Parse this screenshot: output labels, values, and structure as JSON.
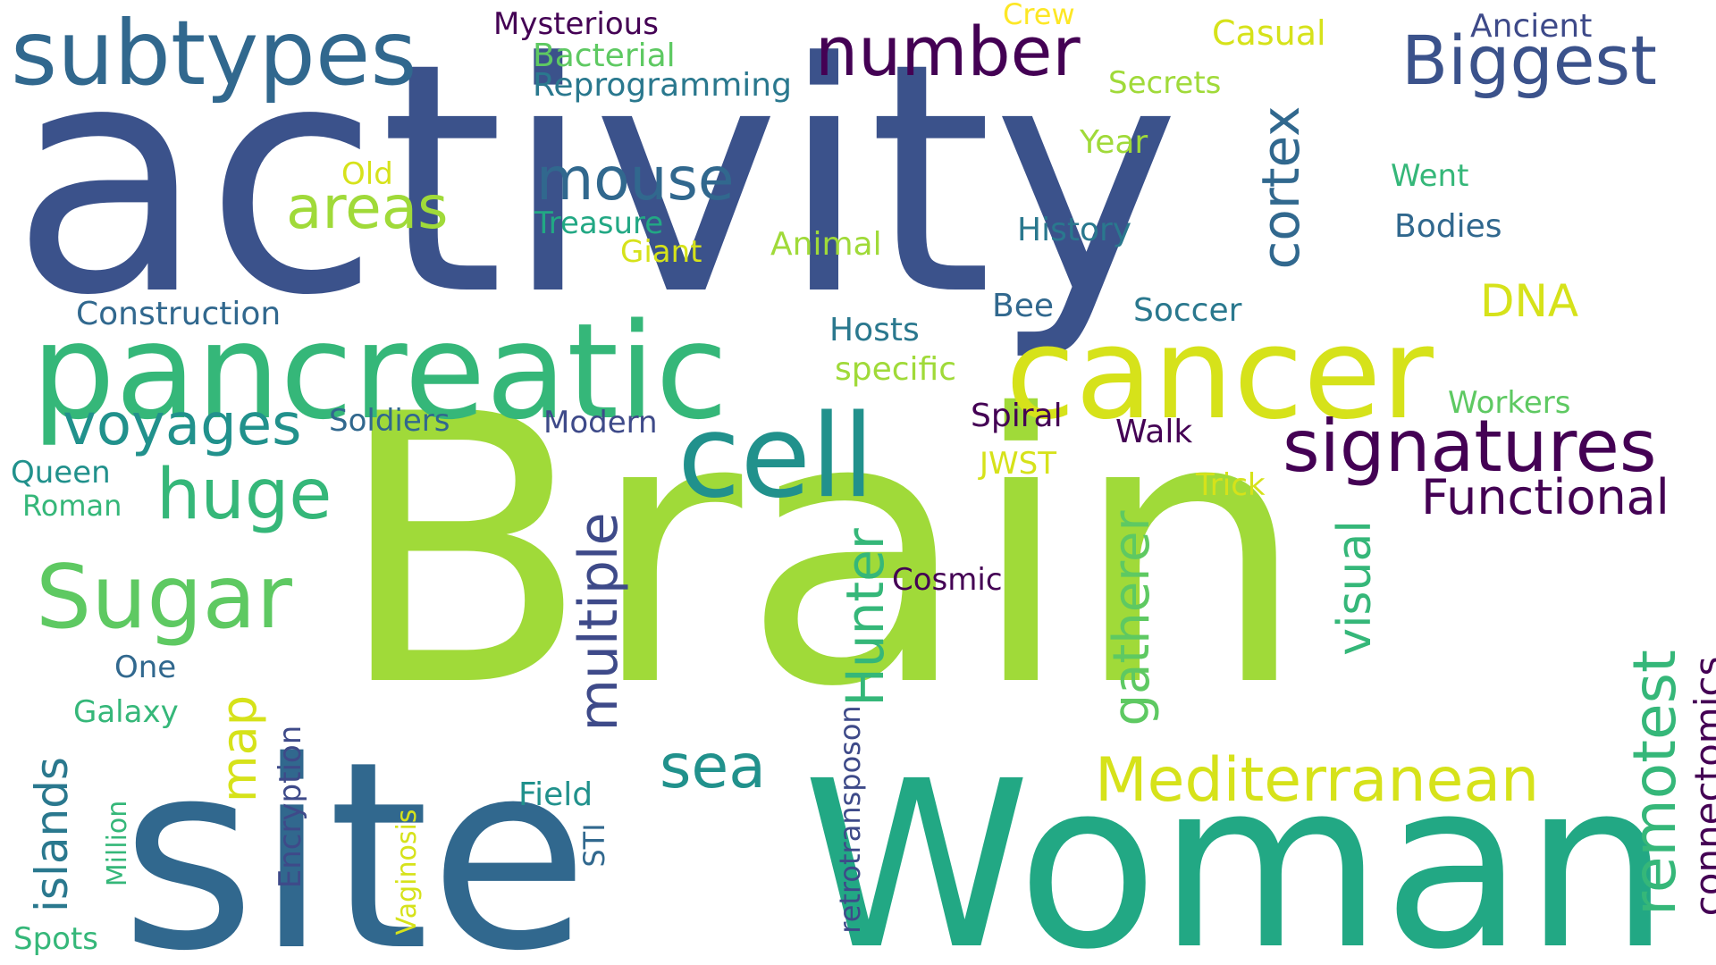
{
  "palette": {
    "background": "#ffffff",
    "colors": [
      "#3b528b",
      "#31688e",
      "#21918c",
      "#35b779",
      "#5ec962",
      "#a0da39",
      "#d6e21a",
      "#440154",
      "#3e4a89",
      "#2a788e",
      "#22a884",
      "#fde725"
    ]
  },
  "words": [
    {
      "id": "activity",
      "text": "activity",
      "color": "#3b528b",
      "vertical": false
    },
    {
      "id": "brain",
      "text": "Brain",
      "color": "#a0da39",
      "vertical": false
    },
    {
      "id": "site",
      "text": "site",
      "color": "#31688e",
      "vertical": false
    },
    {
      "id": "woman",
      "text": "Woman",
      "color": "#22a884",
      "vertical": false
    },
    {
      "id": "pancreatic",
      "text": "pancreatic",
      "color": "#35b779",
      "vertical": false
    },
    {
      "id": "cancer",
      "text": "cancer",
      "color": "#d6e21a",
      "vertical": false
    },
    {
      "id": "subtypes",
      "text": "subtypes",
      "color": "#31688e",
      "vertical": false
    },
    {
      "id": "cell",
      "text": "cell",
      "color": "#21918c",
      "vertical": false
    },
    {
      "id": "signatures",
      "text": "signatures",
      "color": "#440154",
      "vertical": false
    },
    {
      "id": "number",
      "text": "number",
      "color": "#440154",
      "vertical": false
    },
    {
      "id": "biggest",
      "text": "Biggest",
      "color": "#3b528b",
      "vertical": false
    },
    {
      "id": "mediterranean",
      "text": "Mediterranean",
      "color": "#d6e21a",
      "vertical": false
    },
    {
      "id": "sugar",
      "text": "Sugar",
      "color": "#5ec962",
      "vertical": false
    },
    {
      "id": "voyages",
      "text": "voyages",
      "color": "#21918c",
      "vertical": false
    },
    {
      "id": "huge",
      "text": "huge",
      "color": "#35b779",
      "vertical": false
    },
    {
      "id": "mouse",
      "text": "mouse",
      "color": "#31688e",
      "vertical": false
    },
    {
      "id": "areas",
      "text": "areas",
      "color": "#a0da39",
      "vertical": false
    },
    {
      "id": "functional",
      "text": "Functional",
      "color": "#440154",
      "vertical": false
    },
    {
      "id": "sea",
      "text": "sea",
      "color": "#21918c",
      "vertical": false
    },
    {
      "id": "dna",
      "text": "DNA",
      "color": "#d6e21a",
      "vertical": false
    },
    {
      "id": "cortex",
      "text": "cortex",
      "color": "#31688e",
      "vertical": true
    },
    {
      "id": "multiple",
      "text": "multiple",
      "color": "#3e4a89",
      "vertical": true
    },
    {
      "id": "hunter",
      "text": "Hunter",
      "color": "#35b779",
      "vertical": true
    },
    {
      "id": "gatherer",
      "text": "gatherer",
      "color": "#5ec962",
      "vertical": true
    },
    {
      "id": "visual",
      "text": "visual",
      "color": "#35b779",
      "vertical": true
    },
    {
      "id": "remotest",
      "text": "remotest",
      "color": "#35b779",
      "vertical": true
    },
    {
      "id": "connectomics",
      "text": "connectomics",
      "color": "#440154",
      "vertical": true
    },
    {
      "id": "islands",
      "text": "islands",
      "color": "#2a788e",
      "vertical": true
    },
    {
      "id": "map",
      "text": "map",
      "color": "#d6e21a",
      "vertical": true
    },
    {
      "id": "retrotransposon",
      "text": "retrotransposon",
      "color": "#3e4a89",
      "vertical": true
    },
    {
      "id": "encryption",
      "text": "Encryption",
      "color": "#3e4a89",
      "vertical": true
    },
    {
      "id": "vaginosis",
      "text": "Vaginosis",
      "color": "#d6e21a",
      "vertical": true
    },
    {
      "id": "million",
      "text": "Million",
      "color": "#35b779",
      "vertical": true
    },
    {
      "id": "sti",
      "text": "STI",
      "color": "#31688e",
      "vertical": true
    },
    {
      "id": "mysterious",
      "text": "Mysterious",
      "color": "#440154",
      "vertical": false
    },
    {
      "id": "crew",
      "text": "Crew",
      "color": "#fde725",
      "vertical": false
    },
    {
      "id": "casual",
      "text": "Casual",
      "color": "#d6e21a",
      "vertical": false
    },
    {
      "id": "ancient",
      "text": "Ancient",
      "color": "#3e4a89",
      "vertical": false
    },
    {
      "id": "bacterial",
      "text": "Bacterial",
      "color": "#5ec962",
      "vertical": false
    },
    {
      "id": "reprogramming",
      "text": "Reprogramming",
      "color": "#2a788e",
      "vertical": false
    },
    {
      "id": "secrets",
      "text": "Secrets",
      "color": "#a0da39",
      "vertical": false
    },
    {
      "id": "year",
      "text": "Year",
      "color": "#a0da39",
      "vertical": false
    },
    {
      "id": "old",
      "text": "Old",
      "color": "#d6e21a",
      "vertical": false
    },
    {
      "id": "went",
      "text": "Went",
      "color": "#35b779",
      "vertical": false
    },
    {
      "id": "treasure",
      "text": "Treasure",
      "color": "#22a884",
      "vertical": false
    },
    {
      "id": "giant",
      "text": "Giant",
      "color": "#d6e21a",
      "vertical": false
    },
    {
      "id": "animal",
      "text": "Animal",
      "color": "#a0da39",
      "vertical": false
    },
    {
      "id": "history",
      "text": "History",
      "color": "#2a788e",
      "vertical": false
    },
    {
      "id": "bodies",
      "text": "Bodies",
      "color": "#31688e",
      "vertical": false
    },
    {
      "id": "construction",
      "text": "Construction",
      "color": "#31688e",
      "vertical": false
    },
    {
      "id": "bee",
      "text": "Bee",
      "color": "#31688e",
      "vertical": false
    },
    {
      "id": "soccer",
      "text": "Soccer",
      "color": "#2a788e",
      "vertical": false
    },
    {
      "id": "hosts",
      "text": "Hosts",
      "color": "#2a788e",
      "vertical": false
    },
    {
      "id": "specific",
      "text": "specific",
      "color": "#a0da39",
      "vertical": false
    },
    {
      "id": "workers",
      "text": "Workers",
      "color": "#5ec962",
      "vertical": false
    },
    {
      "id": "soldiers",
      "text": "Soldiers",
      "color": "#31688e",
      "vertical": false
    },
    {
      "id": "modern",
      "text": "Modern",
      "color": "#3e4a89",
      "vertical": false
    },
    {
      "id": "spiral",
      "text": "Spiral",
      "color": "#440154",
      "vertical": false
    },
    {
      "id": "walk",
      "text": "Walk",
      "color": "#440154",
      "vertical": false
    },
    {
      "id": "jwst",
      "text": "JWST",
      "color": "#d6e21a",
      "vertical": false
    },
    {
      "id": "trick",
      "text": "Trick",
      "color": "#d6e21a",
      "vertical": false
    },
    {
      "id": "queen",
      "text": "Queen",
      "color": "#21918c",
      "vertical": false
    },
    {
      "id": "roman",
      "text": "Roman",
      "color": "#35b779",
      "vertical": false
    },
    {
      "id": "cosmic",
      "text": "Cosmic",
      "color": "#440154",
      "vertical": false
    },
    {
      "id": "one",
      "text": "One",
      "color": "#31688e",
      "vertical": false
    },
    {
      "id": "galaxy",
      "text": "Galaxy",
      "color": "#35b779",
      "vertical": false
    },
    {
      "id": "field",
      "text": "Field",
      "color": "#21918c",
      "vertical": false
    },
    {
      "id": "spots",
      "text": "Spots",
      "color": "#35b779",
      "vertical": false
    }
  ]
}
